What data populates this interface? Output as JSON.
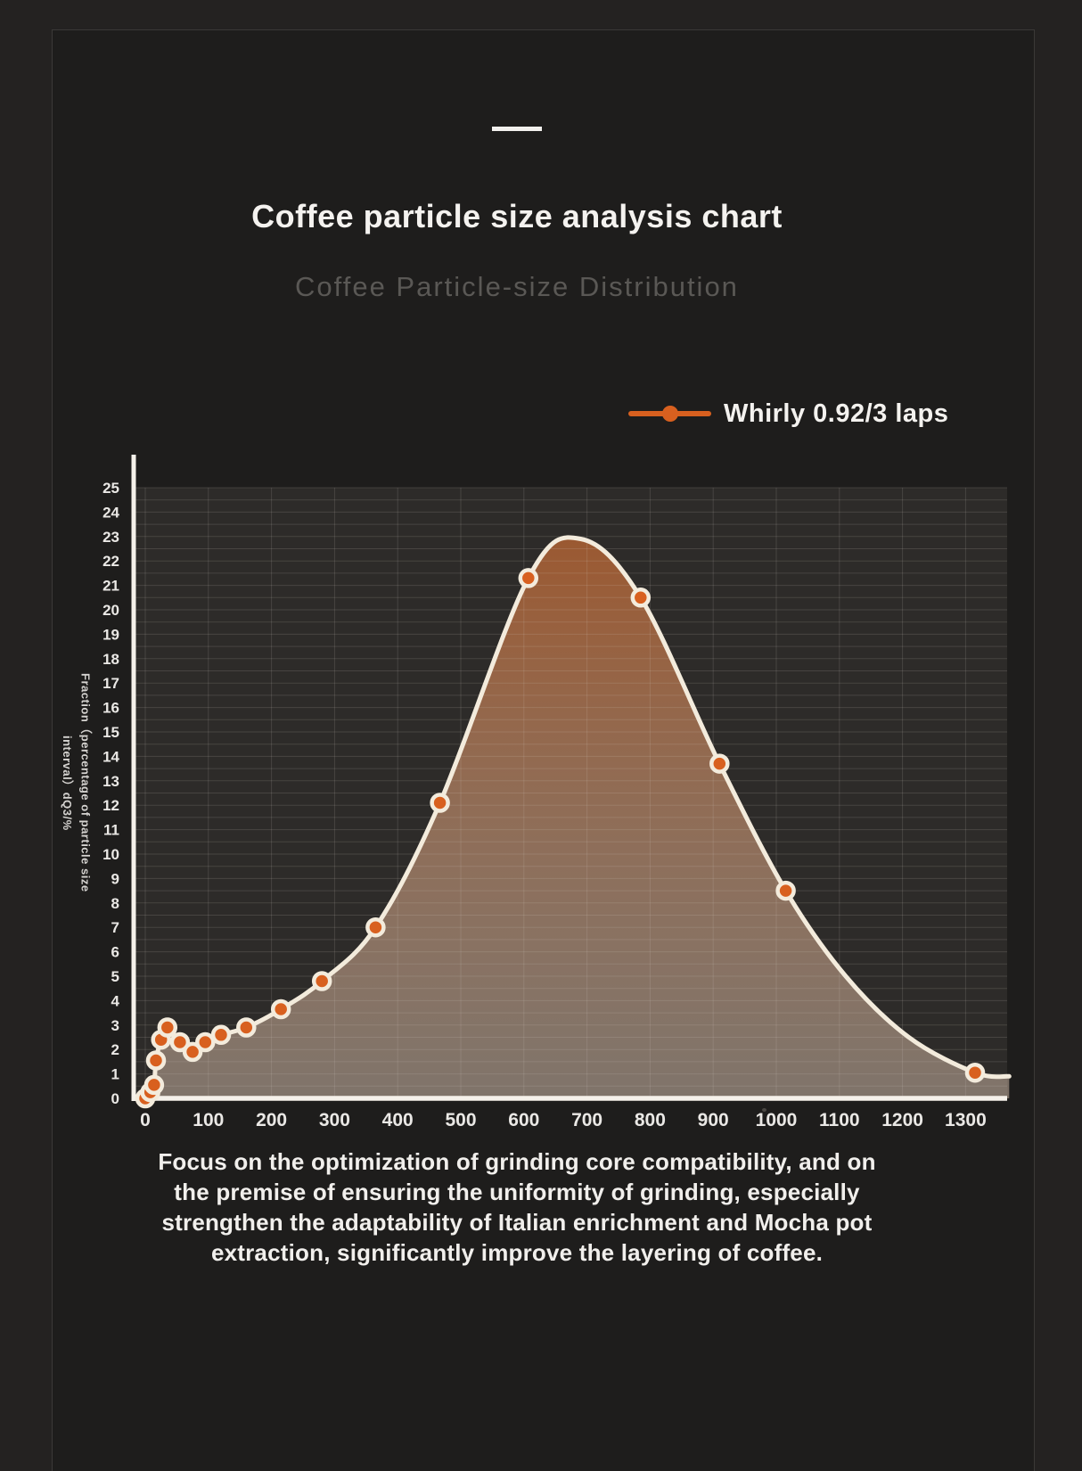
{
  "header": {
    "title": "Coffee particle size analysis chart",
    "subtitle": "Coffee Particle-size Distribution"
  },
  "legend": {
    "series_label": "Whirly 0.92/3 laps"
  },
  "footer": {
    "lines": [
      "Focus on the optimization of grinding core compatibility, and on",
      "the premise of ensuring the uniformity of grinding, especially",
      "strengthen the adaptability of Italian enrichment and Mocha pot",
      "extraction, significantly improve the layering of coffee."
    ]
  },
  "colors": {
    "page_bg": "#242221",
    "panel_bg": "#1e1d1c",
    "frame_line": "#3b3937",
    "plot_bg": "#2d2b29",
    "grid_line": "rgba(220,216,210,0.15)",
    "axis_line": "#f5f1ea",
    "curve": "#f3ebdc",
    "point_fill": "#d8601f",
    "point_ring": "#f3ebdc",
    "fill_top": "rgba(170,95,50,0.88)",
    "fill_bottom": "rgba(196,176,160,0.55)",
    "title_text": "#f4f2ef",
    "subtitle_text": "#5a5855",
    "tick_text": "#eae8e5",
    "footer_text": "#f1efec"
  },
  "chart_data": {
    "type": "line",
    "title": "Coffee Particle-size Distribution",
    "xlabel": "",
    "ylabel_lines": [
      "Fraction（percentage of particle size",
      "interval）dQ3/%"
    ],
    "xlim": [
      0,
      1370
    ],
    "ylim": [
      0,
      25
    ],
    "grid": {
      "h_step": 0.5,
      "v_step": 100,
      "grid_on": true
    },
    "legend_position": "top-right",
    "x_ticks": [
      0,
      100,
      200,
      300,
      400,
      500,
      600,
      700,
      800,
      900,
      1000,
      1100,
      1200,
      1300
    ],
    "y_ticks": [
      0,
      1,
      2,
      3,
      4,
      5,
      6,
      7,
      8,
      9,
      10,
      11,
      12,
      13,
      14,
      15,
      16,
      17,
      18,
      19,
      20,
      21,
      22,
      23,
      24,
      25
    ],
    "series": [
      {
        "name": "Whirly 0.92/3 laps",
        "color": "#d8601f",
        "points": [
          [
            0,
            0.0
          ],
          [
            8,
            0.25
          ],
          [
            14,
            0.55
          ],
          [
            17,
            1.55
          ],
          [
            25,
            2.4
          ],
          [
            35,
            2.9
          ],
          [
            55,
            2.3
          ],
          [
            75,
            1.9
          ],
          [
            95,
            2.3
          ],
          [
            120,
            2.6
          ],
          [
            160,
            2.9
          ],
          [
            215,
            3.65
          ],
          [
            280,
            4.8
          ],
          [
            365,
            7.0
          ],
          [
            467,
            12.1
          ],
          [
            607,
            21.3
          ],
          [
            785,
            20.5
          ],
          [
            910,
            13.7
          ],
          [
            1015,
            8.5
          ],
          [
            1315,
            1.05
          ]
        ]
      }
    ],
    "curve_shape_points": [
      [
        690,
        22.9
      ],
      [
        1110,
        5.0
      ],
      [
        1210,
        2.5
      ],
      [
        1369,
        0.9
      ]
    ]
  }
}
